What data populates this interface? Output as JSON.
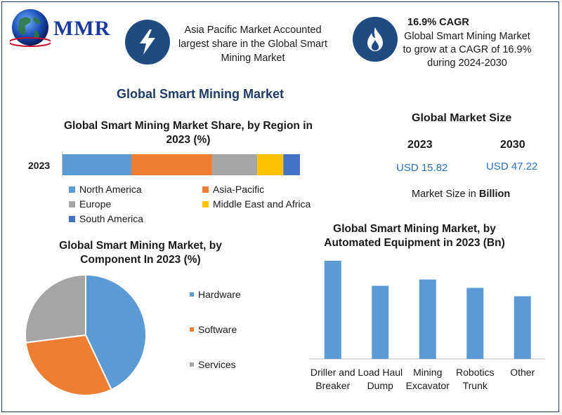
{
  "logo": {
    "text": "MMR"
  },
  "highlight1": {
    "icon": "lightning-bolt-icon",
    "text": "Asia Pacific Market Accounted largest share in the Global Smart Mining Market"
  },
  "highlight2": {
    "icon": "flame-icon",
    "title": "16.9% CAGR",
    "text": "Global Smart Mining Market to grow at a CAGR of 16.9% during 2024-2030"
  },
  "main_title": "Global Smart Mining Market",
  "market_size": {
    "title": "Global Market Size",
    "year1": "2023",
    "value1": "USD 15.82",
    "year2": "2030",
    "value2": "USD 47.22",
    "note_prefix": "Market Size in ",
    "note_bold": "Billion"
  },
  "colors": {
    "north_america": "#5b9bd5",
    "asia_pacific": "#ed7d31",
    "europe": "#a5a5a5",
    "mea": "#ffc000",
    "south_america": "#4472c4",
    "brand": "#1f4a82"
  },
  "chart_data": [
    {
      "type": "bar",
      "orientation": "horizontal-stacked",
      "title": "Global Smart Mining Market Share, by Region in 2023 (%)",
      "categories": [
        "2023"
      ],
      "series": [
        {
          "name": "North America",
          "values": [
            29
          ]
        },
        {
          "name": "Asia-Pacific",
          "values": [
            34
          ]
        },
        {
          "name": "Europe",
          "values": [
            19
          ]
        },
        {
          "name": "Middle East and Africa",
          "values": [
            11
          ]
        },
        {
          "name": "South America",
          "values": [
            7
          ]
        }
      ],
      "legend": "bottom"
    },
    {
      "type": "pie",
      "title": "Global Smart Mining Market, by Component In 2023 (%)",
      "categories": [
        "Hardware",
        "Software",
        "Services"
      ],
      "values": [
        43,
        30,
        27
      ],
      "legend": "right"
    },
    {
      "type": "bar",
      "title": "Global Smart Mining Market, by Automated Equipment in 2023 (Bn)",
      "categories": [
        "Driller and Breaker",
        "Load Haul Dump",
        "Mining Excavator",
        "Robotics Trunk",
        "Other"
      ],
      "values": [
        4.7,
        3.5,
        3.8,
        3.4,
        3.0
      ],
      "ylim": [
        0,
        5
      ]
    }
  ]
}
